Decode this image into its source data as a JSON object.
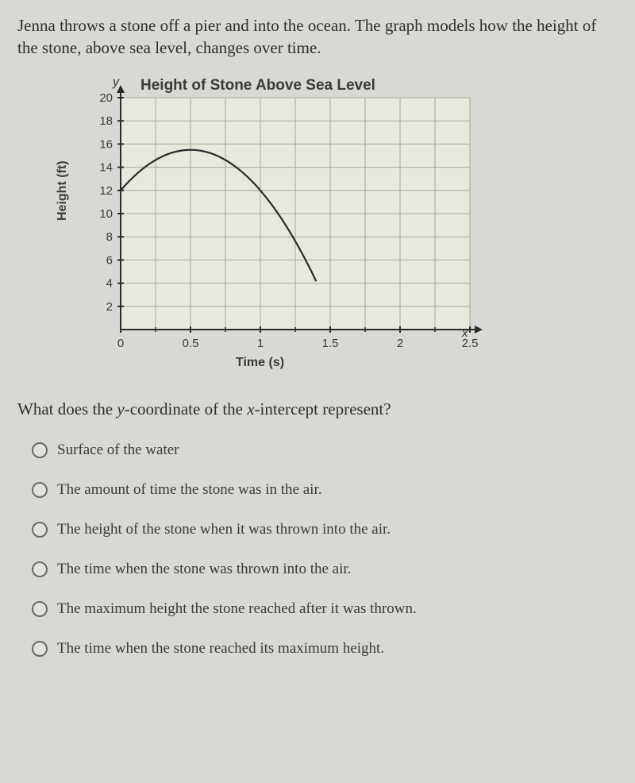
{
  "question": "Jenna throws a stone off a pier and into the ocean.  The graph models how the height of the stone, above sea level, changes over time.",
  "subquestion": "What does the y-coordinate of the x-intercept represent?",
  "chart": {
    "type": "line",
    "title": "Height of Stone Above Sea Level",
    "ylabel": "Height (ft)",
    "xlabel": "Time (s)",
    "y_letter": "y",
    "x_letter": "x",
    "xlim": [
      0,
      2.5
    ],
    "ylim": [
      0,
      20
    ],
    "xtick_step": 0.5,
    "xtick_minor": 0.25,
    "ytick_step": 2,
    "x_ticks": [
      0,
      0.5,
      1,
      1.5,
      2,
      2.5
    ],
    "x_tick_labels": [
      "0",
      "0.5",
      "1",
      "1.5",
      "2",
      "2.5"
    ],
    "y_ticks": [
      2,
      4,
      6,
      8,
      10,
      12,
      14,
      16,
      18,
      20
    ],
    "y_tick_labels": [
      "2",
      "4",
      "6",
      "8",
      "10",
      "12",
      "14",
      "16",
      "18",
      "20"
    ],
    "background_color": "#e8e8de",
    "grid_color": "#a8a89a",
    "axis_color": "#2a2a2a",
    "line_color": "#2a2a2a",
    "line_width": 2.2,
    "label_fontsize": 16,
    "tick_fontsize": 15,
    "title_fontsize": 19,
    "curve": {
      "y_intercept": 12,
      "vertex_x": 0.5,
      "vertex_y": 15.5,
      "x_intercept": 1.4
    }
  },
  "options": [
    "Surface of the water",
    "The amount of time the stone was in the air.",
    "The height of the stone when it was thrown into the air.",
    "The time when the stone was thrown into the air.",
    "The maximum height the stone reached after it was thrown.",
    "The time when the stone reached its maximum height."
  ]
}
